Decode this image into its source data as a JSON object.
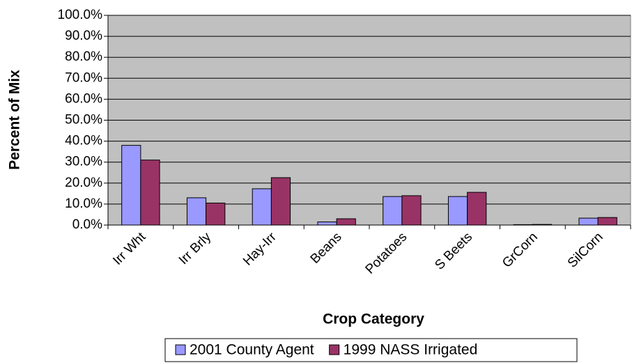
{
  "chart_data": {
    "type": "bar",
    "x_label": "Crop Category",
    "y_label": "Percent of Mix",
    "categories": [
      "Irr Wht",
      "Irr Brly",
      "Hay-Irr",
      "Beans",
      "Potatoes",
      "S Beets",
      "GrCorn",
      "SilCorn"
    ],
    "series": [
      {
        "name": "2001 County Agent",
        "color": "#9999ff",
        "values": [
          38,
          13,
          17.3,
          1.5,
          13.6,
          13.6,
          0.2,
          3.3
        ]
      },
      {
        "name": "1999 NASS Irrigated",
        "color": "#993366",
        "values": [
          31,
          10.5,
          22.6,
          3,
          14,
          15.6,
          0.3,
          3.6
        ]
      }
    ],
    "ylim": [
      0,
      100
    ],
    "yticks": [
      {
        "value": 0,
        "label": "0.0%"
      },
      {
        "value": 10,
        "label": "10.0%"
      },
      {
        "value": 20,
        "label": "20.0%"
      },
      {
        "value": 30,
        "label": "30.0%"
      },
      {
        "value": 40,
        "label": "40.0%"
      },
      {
        "value": 50,
        "label": "50.0%"
      },
      {
        "value": 60,
        "label": "60.0%"
      },
      {
        "value": 70,
        "label": "70.0%"
      },
      {
        "value": 80,
        "label": "80.0%"
      },
      {
        "value": 90,
        "label": "90.0%"
      },
      {
        "value": 100,
        "label": "100.0%"
      }
    ],
    "grid": true,
    "plot_background": "#c0c0c0",
    "legend_position": "bottom"
  }
}
